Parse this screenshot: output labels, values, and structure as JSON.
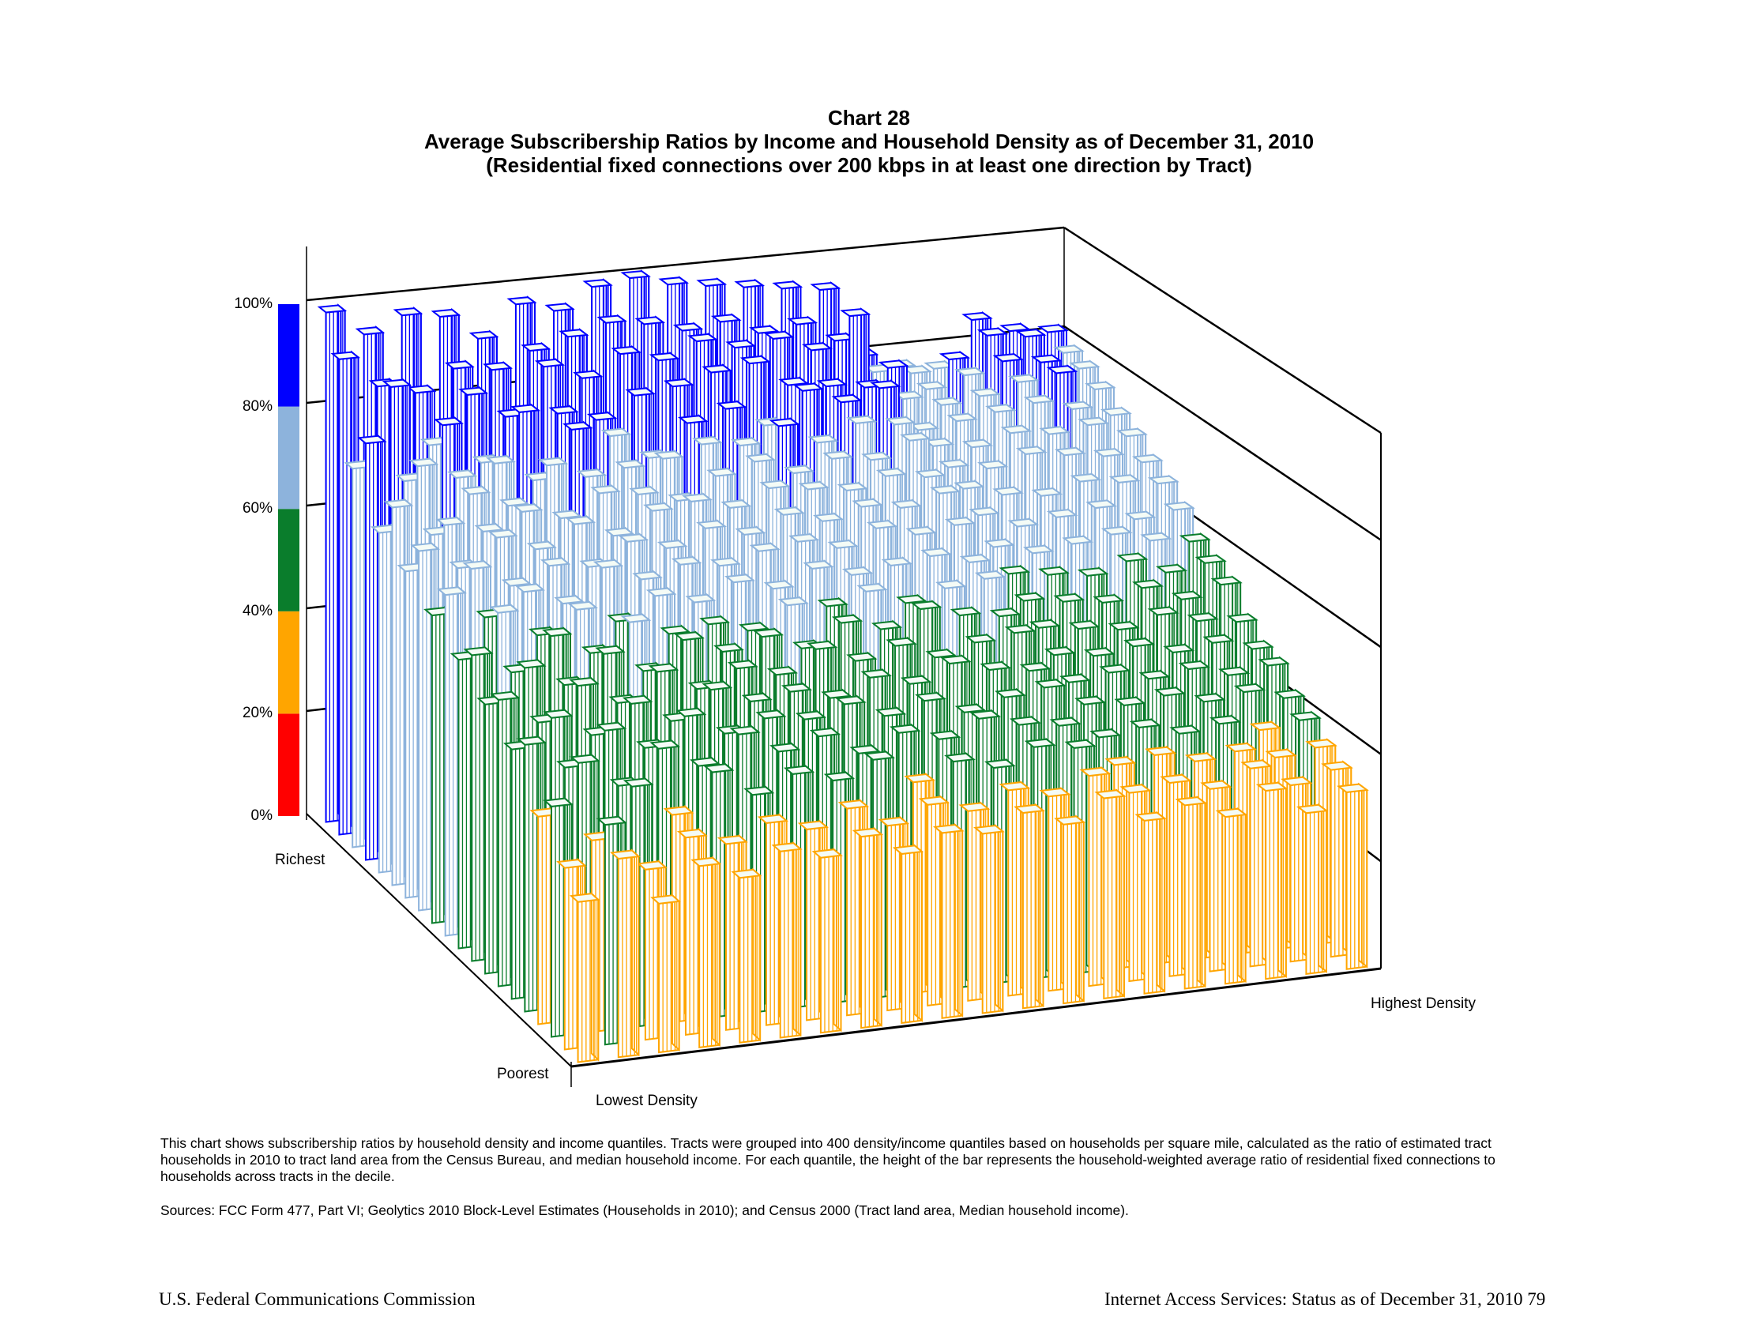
{
  "chart_data": {
    "type": "bar3d",
    "title": "Chart 28",
    "subtitle": "Average Subscribership Ratios by Income and Household Density as of December 31, 2010",
    "subtitle2": "(Residential fixed connections over 200 kbps in at least one direction by Tract)",
    "zlabel": "Average subscribership ratio",
    "zlim": [
      0,
      100
    ],
    "z_ticks": [
      "0%",
      "20%",
      "40%",
      "60%",
      "80%",
      "100%"
    ],
    "grid": true,
    "income_axis": {
      "start_label": "Richest",
      "end_label": "Poorest",
      "quantiles": 20
    },
    "density_axis": {
      "start_label": "Lowest Density",
      "end_label": "Highest Density",
      "quantiles": 20
    },
    "color_scale": [
      {
        "range": [
          0,
          20
        ],
        "color": "#ff0000"
      },
      {
        "range": [
          20,
          40
        ],
        "color": "#ffa500"
      },
      {
        "range": [
          40,
          60
        ],
        "color": "#0a7d2c"
      },
      {
        "range": [
          60,
          80
        ],
        "color": "#8db3dc"
      },
      {
        "range": [
          80,
          100
        ],
        "color": "#0000ff"
      }
    ],
    "rows_note": "rows ordered Richest (first) to Poorest (last); columns ordered Lowest Density (first) to Highest Density (last); values are percent, approximate",
    "values": [
      [
        99,
        94,
        97,
        96,
        91,
        97,
        95,
        99,
        100,
        98,
        97,
        96,
        95,
        94,
        80,
        77,
        76,
        85,
        82,
        81
      ],
      [
        92,
        86,
        84,
        88,
        87,
        90,
        92,
        94,
        93,
        91,
        92,
        89,
        90,
        86,
        79,
        78,
        80,
        84,
        83,
        79
      ],
      [
        73,
        88,
        76,
        85,
        80,
        89,
        86,
        90,
        88,
        91,
        89,
        90,
        87,
        93,
        82,
        77,
        79,
        81,
        80,
        78
      ],
      [
        80,
        72,
        82,
        74,
        83,
        82,
        80,
        84,
        85,
        87,
        88,
        83,
        82,
        81,
        78,
        76,
        77,
        79,
        80,
        76
      ],
      [
        65,
        77,
        74,
        76,
        72,
        81,
        79,
        74,
        80,
        82,
        78,
        84,
        81,
        83,
        74,
        75,
        76,
        77,
        75,
        73
      ],
      [
        72,
        66,
        73,
        70,
        77,
        74,
        75,
        76,
        78,
        77,
        80,
        76,
        79,
        78,
        73,
        72,
        74,
        73,
        74,
        71
      ],
      [
        62,
        70,
        68,
        71,
        69,
        73,
        72,
        70,
        74,
        76,
        73,
        75,
        74,
        77,
        71,
        70,
        72,
        71,
        70,
        68
      ],
      [
        68,
        64,
        69,
        66,
        70,
        67,
        71,
        72,
        70,
        73,
        72,
        71,
        73,
        72,
        69,
        67,
        66,
        68,
        67,
        66
      ],
      [
        58,
        66,
        62,
        65,
        64,
        68,
        66,
        69,
        67,
        70,
        68,
        70,
        69,
        71,
        66,
        63,
        64,
        65,
        62,
        63
      ],
      [
        64,
        59,
        63,
        60,
        66,
        63,
        65,
        64,
        66,
        67,
        65,
        68,
        66,
        67,
        62,
        60,
        61,
        62,
        60,
        59
      ],
      [
        54,
        62,
        57,
        61,
        58,
        62,
        60,
        63,
        61,
        64,
        62,
        63,
        64,
        62,
        59,
        58,
        57,
        59,
        56,
        57
      ],
      [
        57,
        53,
        59,
        55,
        60,
        57,
        58,
        56,
        60,
        59,
        61,
        58,
        60,
        61,
        56,
        55,
        54,
        56,
        53,
        55
      ],
      [
        50,
        56,
        52,
        57,
        53,
        58,
        55,
        57,
        54,
        58,
        56,
        59,
        57,
        56,
        53,
        52,
        51,
        53,
        51,
        50
      ],
      [
        53,
        48,
        54,
        50,
        55,
        51,
        54,
        52,
        56,
        53,
        55,
        52,
        54,
        55,
        50,
        49,
        50,
        48,
        49,
        47
      ],
      [
        46,
        51,
        47,
        52,
        48,
        53,
        50,
        51,
        49,
        52,
        50,
        53,
        51,
        50,
        47,
        48,
        46,
        47,
        45,
        46
      ],
      [
        49,
        44,
        50,
        46,
        51,
        47,
        49,
        48,
        50,
        47,
        49,
        46,
        48,
        49,
        45,
        44,
        45,
        43,
        44,
        42
      ],
      [
        38,
        47,
        42,
        48,
        44,
        49,
        45,
        47,
        43,
        46,
        44,
        47,
        45,
        44,
        41,
        42,
        40,
        41,
        39,
        40
      ],
      [
        42,
        35,
        44,
        38,
        45,
        40,
        43,
        41,
        44,
        39,
        42,
        40,
        43,
        42,
        38,
        39,
        37,
        38,
        36,
        37
      ],
      [
        33,
        40,
        31,
        36,
        34,
        37,
        35,
        38,
        34,
        37,
        35,
        38,
        36,
        39,
        35,
        36,
        34,
        37,
        33,
        35
      ],
      [
        29,
        36,
        27,
        33,
        30,
        34,
        32,
        35,
        31,
        34,
        33,
        36,
        33,
        37,
        32,
        34,
        31,
        35,
        30,
        33
      ]
    ]
  },
  "note": {
    "description": "This chart shows subscribership ratios by household density and income quantiles.  Tracts were grouped into 400 density/income quantiles based on households per square mile, calculated as the ratio of estimated tract households in 2010 to tract land area from the Census Bureau, and median household income. For each quantile, the height of the bar represents the household-weighted average ratio of residential fixed connections to households across tracts in the decile.",
    "sources": "Sources: FCC Form 477, Part VI; Geolytics 2010 Block-Level Estimates (Households in 2010); and Census 2000 (Tract land area, Median household income)."
  },
  "footer": {
    "left": "U.S. Federal Communications Commission",
    "right": "Internet Access Services: Status as of December 31, 2010  79"
  }
}
